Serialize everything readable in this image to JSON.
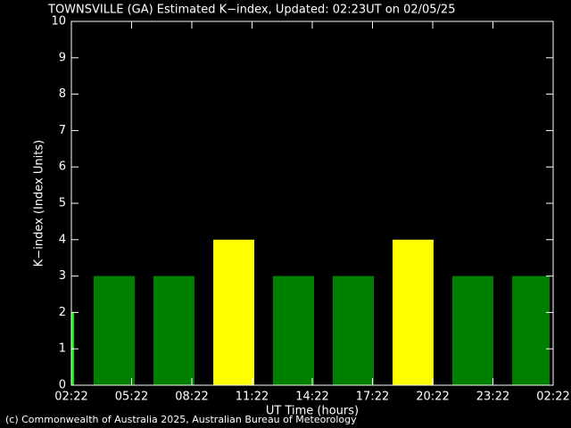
{
  "chart_data": {
    "type": "bar",
    "title": "TOWNSVILLE (GA) Estimated K−index, Updated: 02:23UT on 02/05/25",
    "x_label": "UT Time (hours)",
    "y_label": "K−index (Index Units)",
    "footer": "(c) Commonwealth of Australia 2025, Australian Bureau of Meteorology",
    "x_start": [
      0,
      1.11,
      4.09,
      7.07,
      10.04,
      13.02,
      16.0,
      18.98,
      21.96
    ],
    "x_end": [
      0.13,
      3.16,
      6.13,
      9.11,
      12.09,
      15.07,
      18.04,
      21.02,
      23.82
    ],
    "values": [
      2,
      3,
      3,
      4,
      3,
      3,
      4,
      3,
      3
    ],
    "colors": [
      "#00ff00",
      "#008000",
      "#008000",
      "#ffff00",
      "#008000",
      "#008000",
      "#ffff00",
      "#008000",
      "#008000"
    ],
    "xlim": [
      0,
      24
    ],
    "xticks": [
      {
        "value": 0,
        "label": "02:22"
      },
      {
        "value": 3,
        "label": "05:22"
      },
      {
        "value": 6,
        "label": "08:22"
      },
      {
        "value": 9,
        "label": "11:22"
      },
      {
        "value": 12,
        "label": "14:22"
      },
      {
        "value": 15,
        "label": "17:22"
      },
      {
        "value": 18,
        "label": "20:22"
      },
      {
        "value": 21,
        "label": "23:22"
      },
      {
        "value": 24,
        "label": "02:22"
      }
    ],
    "ylim": [
      0,
      10
    ],
    "yticks": [
      0,
      1,
      2,
      3,
      4,
      5,
      6,
      7,
      8,
      9,
      10
    ]
  }
}
